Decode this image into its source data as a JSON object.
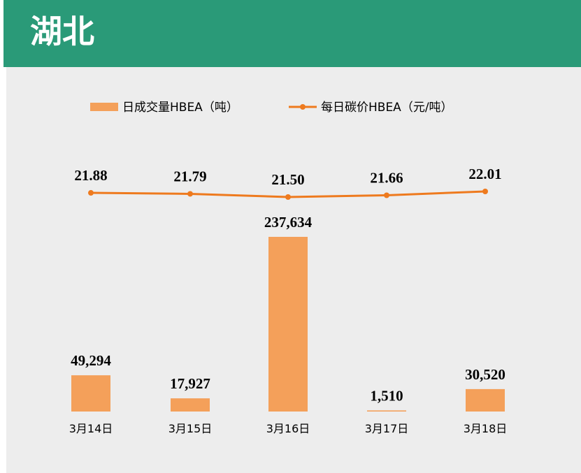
{
  "header": {
    "title": "湖北"
  },
  "colors": {
    "header_bg": "#2a9a78",
    "panel_bg": "#ededed",
    "bar": "#f4a05a",
    "line": "#ee7a1e"
  },
  "chart_data": {
    "type": "bar",
    "categories": [
      "3月14日",
      "3月15日",
      "3月16日",
      "3月17日",
      "3月18日"
    ],
    "series": [
      {
        "name": "日成交量HBEA（吨）",
        "type": "bar",
        "values": [
          49294,
          17927,
          237634,
          1510,
          30520
        ],
        "labels": [
          "49,294",
          "17,927",
          "237,634",
          "1,510",
          "30,520"
        ]
      },
      {
        "name": "每日碳价HBEA（元/吨）",
        "type": "line",
        "values": [
          21.88,
          21.79,
          21.5,
          21.66,
          22.01
        ],
        "labels": [
          "21.88",
          "21.79",
          "21.50",
          "21.66",
          "22.01"
        ]
      }
    ],
    "legend_position": "top",
    "grid": false
  }
}
